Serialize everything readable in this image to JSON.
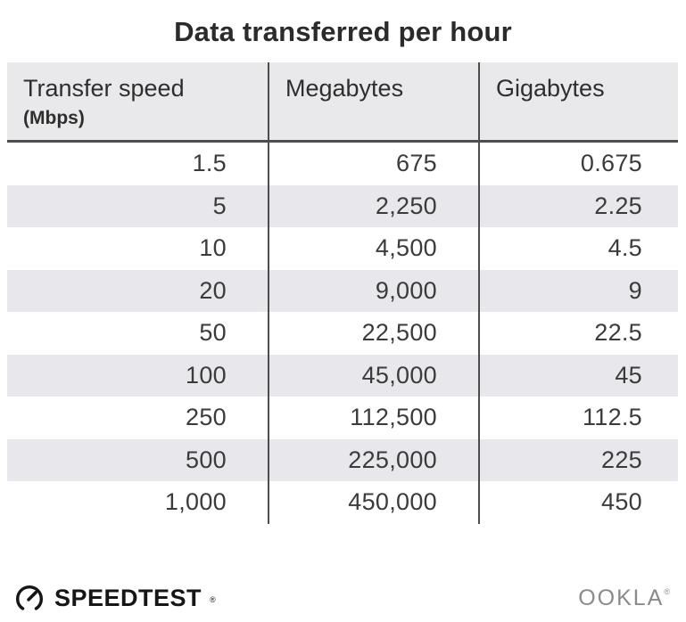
{
  "title": "Data transferred per hour",
  "table": {
    "columns": [
      {
        "label": "Transfer speed",
        "sublabel": "(Mbps)"
      },
      {
        "label": "Megabytes"
      },
      {
        "label": "Gigabytes"
      }
    ],
    "rows": [
      [
        "1.5",
        "675",
        "0.675"
      ],
      [
        "5",
        "2,250",
        "2.25"
      ],
      [
        "10",
        "4,500",
        "4.5"
      ],
      [
        "20",
        "9,000",
        "9"
      ],
      [
        "50",
        "22,500",
        "22.5"
      ],
      [
        "100",
        "45,000",
        "45"
      ],
      [
        "250",
        "112,500",
        "112.5"
      ],
      [
        "500",
        "225,000",
        "225"
      ],
      [
        "1,000",
        "450,000",
        "450"
      ]
    ]
  },
  "footer": {
    "speedtest_label": "SPEEDTEST",
    "speedtest_trademark": "®",
    "ookla_label": "OOKLA",
    "ookla_trademark": "®"
  },
  "colors": {
    "header_bg": "#e9e9eb",
    "row_alt_bg": "#e8e8ec",
    "divider": "#4d4d4d",
    "title_text": "#2b2b2b",
    "data_text": "#3b3b3b",
    "logo_black": "#161616",
    "ookla_gray": "#8a8a8c"
  },
  "chart_data": {
    "type": "table",
    "title": "Data transferred per hour",
    "columns": [
      "Transfer speed (Mbps)",
      "Megabytes",
      "Gigabytes"
    ],
    "rows": [
      [
        1.5,
        675,
        0.675
      ],
      [
        5,
        2250,
        2.25
      ],
      [
        10,
        4500,
        4.5
      ],
      [
        20,
        9000,
        9
      ],
      [
        50,
        22500,
        22.5
      ],
      [
        100,
        45000,
        45
      ],
      [
        250,
        112500,
        112.5
      ],
      [
        500,
        225000,
        225
      ],
      [
        1000,
        450000,
        450
      ]
    ]
  }
}
